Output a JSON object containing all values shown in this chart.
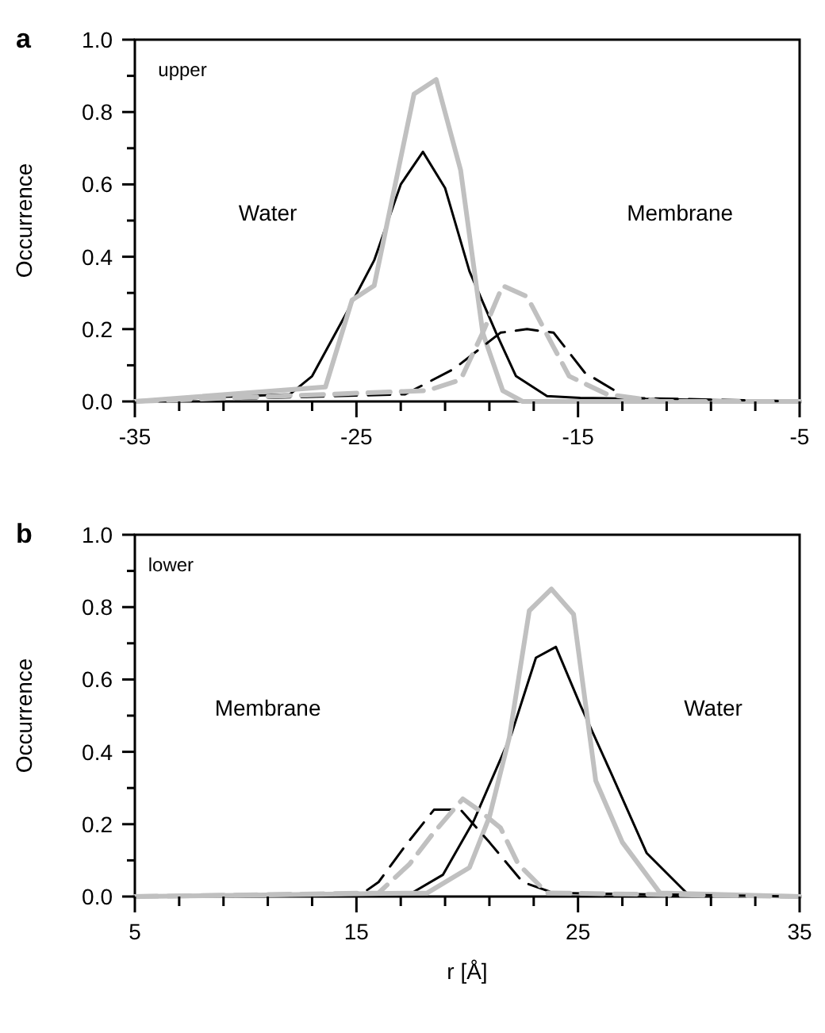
{
  "chart_data": [
    {
      "type": "line",
      "title": "a",
      "ylabel": "Occurrence",
      "annotations": [
        "upper",
        "Water",
        "Membrane"
      ],
      "xlim": [
        -35,
        -5
      ],
      "ylim": [
        0,
        1
      ],
      "xticks": [
        -35,
        {
          "value": -33,
          "label": null
        },
        {
          "value": -31,
          "label": null
        },
        {
          "value": -29,
          "label": null
        },
        {
          "value": -27,
          "label": null
        },
        -25,
        {
          "value": -23,
          "label": null
        },
        {
          "value": -21,
          "label": null
        },
        {
          "value": -19,
          "label": null
        },
        {
          "value": -17,
          "label": null
        },
        -15,
        {
          "value": -13,
          "label": null
        },
        {
          "value": -11,
          "label": null
        },
        {
          "value": -9,
          "label": null
        },
        {
          "value": -7,
          "label": null
        },
        -5
      ],
      "yticks": [
        {
          "value": 0,
          "label": "0.0"
        },
        {
          "value": 0.1,
          "label": null
        },
        {
          "value": 0.2,
          "label": "0.2"
        },
        {
          "value": 0.3,
          "label": null
        },
        {
          "value": 0.4,
          "label": "0.4"
        },
        {
          "value": 0.5,
          "label": null
        },
        {
          "value": 0.6,
          "label": "0.6"
        },
        {
          "value": 0.7,
          "label": null
        },
        {
          "value": 0.8,
          "label": "0.8"
        },
        {
          "value": 0.9,
          "label": null
        },
        {
          "value": 1,
          "label": "1.0"
        }
      ],
      "series": [
        {
          "color": "#000000",
          "line_style": "solid",
          "x": [
            -35,
            -32.1,
            -28,
            -27,
            -25.4,
            -24.2,
            -23,
            -22,
            -21,
            -19.9,
            -18.7,
            -17.8,
            -16.4,
            -14.9,
            -5
          ],
          "values": [
            0,
            0.01,
            0.02,
            0.07,
            0.25,
            0.39,
            0.6,
            0.69,
            0.59,
            0.36,
            0.19,
            0.07,
            0.015,
            0.01,
            0
          ]
        },
        {
          "color": "#c0c0c0",
          "line_style": "solid",
          "x": [
            -35,
            -26.4,
            -25.2,
            -24.2,
            -22.4,
            -21.4,
            -20.3,
            -19.3,
            -18.4,
            -17.5,
            -5
          ],
          "values": [
            0,
            0.04,
            0.28,
            0.32,
            0.85,
            0.89,
            0.64,
            0.19,
            0.03,
            0,
            0
          ]
        },
        {
          "color": "#000000",
          "line_style": "dashed",
          "x": [
            -35,
            -22.8,
            -20.6,
            -18.5,
            -17.3,
            -16.1,
            -14.7,
            -12.8,
            -5
          ],
          "values": [
            0,
            0.02,
            0.09,
            0.19,
            0.2,
            0.19,
            0.08,
            0.01,
            0
          ]
        },
        {
          "color": "#c0c0c0",
          "line_style": "dashed",
          "x": [
            -35,
            -21.8,
            -20.3,
            -19.3,
            -18.4,
            -17.3,
            -16.1,
            -15.4,
            -13.7,
            -11.3,
            -5
          ],
          "values": [
            0,
            0.03,
            0.06,
            0.19,
            0.32,
            0.29,
            0.15,
            0.07,
            0.02,
            0,
            0
          ]
        }
      ]
    },
    {
      "type": "line",
      "title": "b",
      "xlabel": "r [Å]",
      "ylabel": "Occurrence",
      "annotations": [
        "lower",
        "Membrane",
        "Water"
      ],
      "xlim": [
        5,
        35
      ],
      "ylim": [
        0,
        1
      ],
      "xticks": [
        5,
        {
          "value": 7,
          "label": null
        },
        {
          "value": 9,
          "label": null
        },
        {
          "value": 11,
          "label": null
        },
        {
          "value": 13,
          "label": null
        },
        15,
        {
          "value": 17,
          "label": null
        },
        {
          "value": 19,
          "label": null
        },
        {
          "value": 21,
          "label": null
        },
        {
          "value": 23,
          "label": null
        },
        25,
        {
          "value": 27,
          "label": null
        },
        {
          "value": 29,
          "label": null
        },
        {
          "value": 31,
          "label": null
        },
        {
          "value": 33,
          "label": null
        },
        35
      ],
      "yticks": [
        {
          "value": 0,
          "label": "0.0"
        },
        {
          "value": 0.1,
          "label": null
        },
        {
          "value": 0.2,
          "label": "0.2"
        },
        {
          "value": 0.3,
          "label": null
        },
        {
          "value": 0.4,
          "label": "0.4"
        },
        {
          "value": 0.5,
          "label": null
        },
        {
          "value": 0.6,
          "label": "0.6"
        },
        {
          "value": 0.7,
          "label": null
        },
        {
          "value": 0.8,
          "label": "0.8"
        },
        {
          "value": 0.9,
          "label": null
        },
        {
          "value": 1,
          "label": "1.0"
        }
      ],
      "series": [
        {
          "color": "#000000",
          "line_style": "solid",
          "x": [
            5,
            17.5,
            18.9,
            20.3,
            22,
            23.1,
            24,
            25.1,
            26.5,
            28.1,
            29.9,
            35
          ],
          "values": [
            0,
            0.01,
            0.06,
            0.21,
            0.45,
            0.66,
            0.69,
            0.53,
            0.34,
            0.12,
            0.01,
            0
          ]
        },
        {
          "color": "#c0c0c0",
          "line_style": "solid",
          "x": [
            5,
            18.2,
            20.1,
            21,
            21.9,
            22.8,
            23.8,
            24.8,
            25.8,
            27,
            28.7,
            35
          ],
          "values": [
            0,
            0.01,
            0.08,
            0.22,
            0.44,
            0.79,
            0.85,
            0.78,
            0.32,
            0.15,
            0.01,
            0
          ]
        },
        {
          "color": "#000000",
          "line_style": "dashed",
          "x": [
            5,
            15.3,
            16,
            17.2,
            18.5,
            19.7,
            21,
            22.5,
            23.9,
            35
          ],
          "values": [
            0,
            0.01,
            0.04,
            0.14,
            0.24,
            0.24,
            0.15,
            0.04,
            0.01,
            0
          ]
        },
        {
          "color": "#c0c0c0",
          "line_style": "dashed",
          "x": [
            5,
            16,
            17.4,
            18.4,
            19.8,
            20.5,
            21.5,
            22.3,
            23.6,
            35
          ],
          "values": [
            0,
            0.01,
            0.09,
            0.17,
            0.27,
            0.24,
            0.19,
            0.09,
            0.01,
            0
          ]
        }
      ]
    }
  ]
}
